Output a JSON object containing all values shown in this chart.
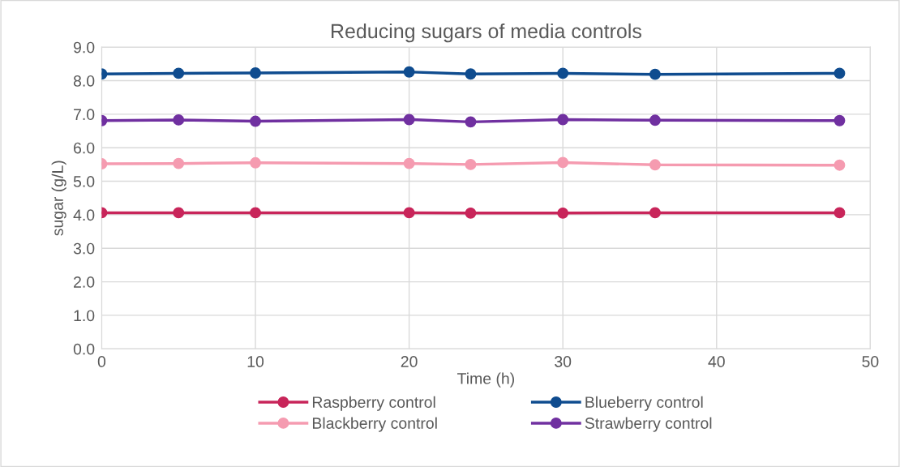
{
  "chart_data": {
    "type": "line",
    "title": "Reducing sugars of media controls",
    "xlabel": "Time (h)",
    "ylabel": "sugar (g/L)",
    "x": [
      0,
      5,
      10,
      20,
      24,
      30,
      36,
      48
    ],
    "series": [
      {
        "name": "Raspberry control",
        "color": "#c8255a",
        "values": [
          4.06,
          4.06,
          4.06,
          4.06,
          4.05,
          4.05,
          4.06,
          4.06
        ]
      },
      {
        "name": "Blackberry control",
        "color": "#f59bb0",
        "values": [
          5.52,
          5.53,
          5.55,
          5.53,
          5.5,
          5.56,
          5.49,
          5.48
        ]
      },
      {
        "name": "Blueberry control",
        "color": "#0f4c8f",
        "values": [
          8.2,
          8.22,
          8.23,
          8.26,
          8.2,
          8.22,
          8.19,
          8.22
        ]
      },
      {
        "name": "Strawberry control",
        "color": "#7030a0",
        "values": [
          6.81,
          6.83,
          6.79,
          6.84,
          6.77,
          6.84,
          6.82,
          6.81
        ]
      }
    ],
    "xlim": [
      0,
      50
    ],
    "xticks": [
      0,
      10,
      20,
      30,
      40,
      50
    ],
    "ylim": [
      0,
      9
    ],
    "yticks": [
      {
        "value": 0,
        "label": "0.0"
      },
      {
        "value": 1,
        "label": "1.0"
      },
      {
        "value": 2,
        "label": "2.0"
      },
      {
        "value": 3,
        "label": "3.0"
      },
      {
        "value": 4,
        "label": "4.0"
      },
      {
        "value": 5,
        "label": "5.0"
      },
      {
        "value": 6,
        "label": "6.0"
      },
      {
        "value": 7,
        "label": "7.0"
      },
      {
        "value": 8,
        "label": "8.0"
      },
      {
        "value": 9,
        "label": "9.0"
      }
    ],
    "grid": true,
    "legend": "bottom",
    "marker": "circle",
    "line_style": "solid"
  }
}
